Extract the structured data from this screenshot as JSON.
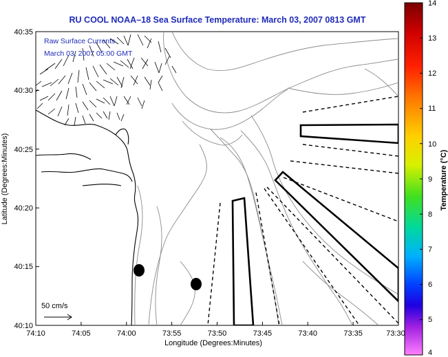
{
  "title": "RU COOL  NOAA–18  Sea Surface Temperature:  March 03, 2007 0813 GMT",
  "overlay": {
    "line1": "Raw Surface Currents",
    "line2": "March 03, 2007 05:00 GMT"
  },
  "axes": {
    "xlabel": "Longitude (Degrees:Minutes)",
    "ylabel": "Latitude (Degrees:Minutes)",
    "xticks": [
      "74:10",
      "74:05",
      "74:00",
      "73:55",
      "73:50",
      "73:45",
      "73:40",
      "73:35",
      "73:30"
    ],
    "yticks": [
      "40:35",
      "40:30",
      "40:25",
      "40:20",
      "40:15",
      "40:10"
    ]
  },
  "scale": {
    "label": "50 cm/s"
  },
  "colorbar": {
    "label": "Temperature (°C)",
    "ticks": [
      "14",
      "13",
      "12",
      "11",
      "10",
      "9",
      "8",
      "7",
      "6",
      "5",
      "4"
    ],
    "min": 4,
    "max": 14
  },
  "colors": {
    "title": "#1f2bb8",
    "coast": "#000000",
    "contour": "#7a7a7a",
    "vectors": "#000000"
  }
}
